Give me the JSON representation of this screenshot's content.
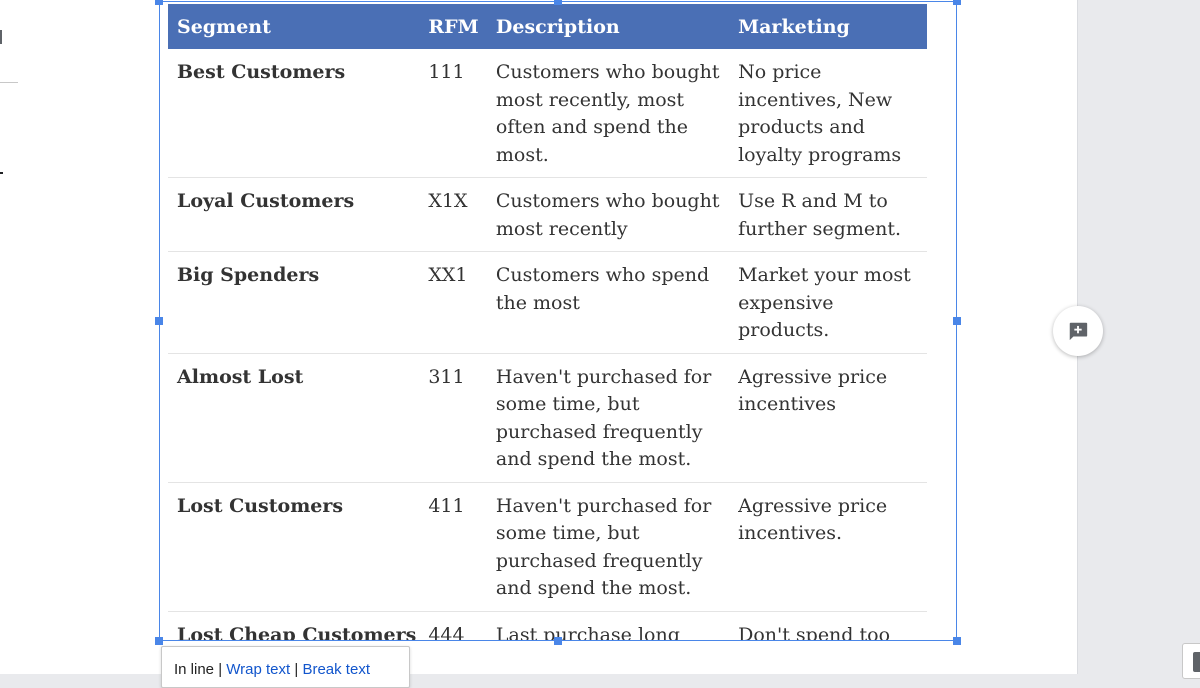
{
  "table": {
    "headers": {
      "segment": "Segment",
      "rfm": "RFM",
      "description": "Description",
      "marketing": "Marketing"
    },
    "rows": [
      {
        "segment": "Best Customers",
        "rfm": "111",
        "description": "Customers who bought most recently, most often and spend the most.",
        "marketing": "No price incentives, New products and loyalty programs"
      },
      {
        "segment": "Loyal Customers",
        "rfm": "X1X",
        "description": "Customers who bought most recently",
        "marketing": "Use R and M to further segment."
      },
      {
        "segment": "Big Spenders",
        "rfm": "XX1",
        "description": "Customers who spend the most",
        "marketing": "Market your most expensive products."
      },
      {
        "segment": "Almost Lost",
        "rfm": "311",
        "description": "Haven't purchased for some time, but purchased frequently and spend the most.",
        "marketing": "Agressive price incentives"
      },
      {
        "segment": "Lost Customers",
        "rfm": "411",
        "description": "Haven't purchased for some time, but purchased frequently and spend the most.",
        "marketing": "Agressive price incentives."
      },
      {
        "segment": "Lost Cheap Customers",
        "rfm": "444",
        "description": "Last purchase long ago, purchased few and spend little.",
        "marketing": "Don't spend too much trying to re-acquire."
      }
    ]
  },
  "image_options": {
    "inline": "In line",
    "separator": "|",
    "wrap_text": "Wrap text",
    "break_text": "Break text"
  },
  "icons": {
    "comment": "add-comment-icon"
  },
  "colors": {
    "header_bg": "#4a6fb5",
    "selection": "#4a86e8",
    "link": "#1155cc"
  }
}
